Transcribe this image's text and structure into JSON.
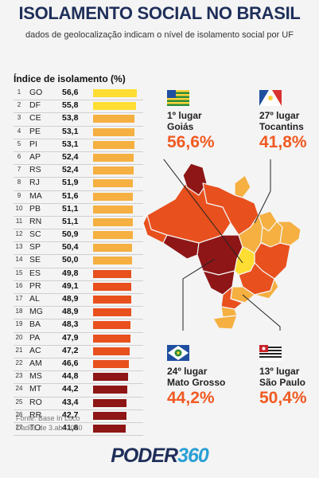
{
  "title": "ISOLAMENTO SOCIAL NO BRASIL",
  "subtitle": "dados de geolocalização indicam o nível de isolamento social por UF",
  "chart_data": {
    "type": "bar",
    "title": "Índice de isolamento (%)",
    "orientation": "horizontal",
    "categories": [
      "GO",
      "DF",
      "CE",
      "PE",
      "PI",
      "AP",
      "RS",
      "RJ",
      "MA",
      "PB",
      "RN",
      "SC",
      "SP",
      "SE",
      "ES",
      "PR",
      "AL",
      "MG",
      "BA",
      "PA",
      "AC",
      "AM",
      "MS",
      "MT",
      "RO",
      "RR",
      "TO"
    ],
    "ranks": [
      "1",
      "2",
      "3",
      "4",
      "5",
      "6",
      "7",
      "8",
      "9",
      "10",
      "11",
      "12",
      "13",
      "14",
      "15",
      "16",
      "17",
      "18",
      "19",
      "20",
      "21",
      "22",
      "23",
      "24",
      "25",
      "26",
      "27"
    ],
    "values": [
      56.6,
      55.8,
      53.8,
      53.1,
      53.1,
      52.4,
      52.4,
      51.9,
      51.6,
      51.1,
      51.1,
      50.9,
      50.4,
      50.0,
      49.8,
      49.1,
      48.9,
      48.9,
      48.3,
      47.9,
      47.2,
      46.6,
      44.8,
      44.2,
      43.4,
      42.7,
      41.8
    ],
    "value_labels": [
      "56,6",
      "55,8",
      "53,8",
      "53,1",
      "53,1",
      "52,4",
      "52,4",
      "51,9",
      "51,6",
      "51,1",
      "51,1",
      "50,9",
      "50,4",
      "50,0",
      "49,8",
      "49,1",
      "48,9",
      "48,9",
      "48,3",
      "47,9",
      "47,2",
      "46,6",
      "44,8",
      "44,2",
      "43,4",
      "42,7",
      "41,8"
    ],
    "colors": [
      "#ffdd33",
      "#ffdd33",
      "#f5b041",
      "#f5b041",
      "#f5b041",
      "#f5b041",
      "#f5b041",
      "#f5b041",
      "#f5b041",
      "#f5b041",
      "#f5b041",
      "#f5b041",
      "#f5b041",
      "#f5b041",
      "#e8501e",
      "#e8501e",
      "#e8501e",
      "#e8501e",
      "#e8501e",
      "#e8501e",
      "#e8501e",
      "#e8501e",
      "#8e1616",
      "#8e1616",
      "#8e1616",
      "#8e1616",
      "#8e1616"
    ],
    "xlim": [
      0,
      56.6
    ]
  },
  "callouts": {
    "go": {
      "rank": "1º lugar",
      "state": "Goiás",
      "value": "56,6%"
    },
    "to": {
      "rank": "27º lugar",
      "state": "Tocantins",
      "value": "41,8%"
    },
    "mt": {
      "rank": "24º lugar",
      "state": "Mato Grosso",
      "value": "44,2%"
    },
    "sp": {
      "rank": "13º lugar",
      "state": "São Paulo",
      "value": "50,4%"
    }
  },
  "source": {
    "line1": "Fonte: Base In Loco",
    "line2": "Dados de 3.abr.2020"
  },
  "logo": {
    "part1": "PODER",
    "part2": "360"
  },
  "colors": {
    "accent": "#f05a22",
    "navy": "#1f2f5a",
    "blue": "#2a9fd6"
  }
}
